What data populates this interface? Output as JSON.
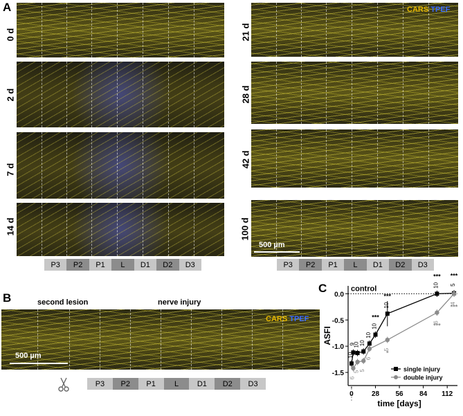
{
  "panel_a": {
    "letter": "A",
    "left_days": [
      "0 d",
      "2 d",
      "7 d",
      "14 d"
    ],
    "right_days": [
      "21 d",
      "28 d",
      "42 d",
      "100 d"
    ],
    "legend_cars": "CARS",
    "legend_tpef": "TPEF",
    "scale_label": "500 µm",
    "segments": [
      "P3",
      "P2",
      "P1",
      "L",
      "D1",
      "D2",
      "D3"
    ]
  },
  "panel_b": {
    "letter": "B",
    "second_lesion": "second lesion",
    "nerve_injury": "nerve injury",
    "legend_cars": "CARS",
    "legend_tpef": "TPEF",
    "scale_label": "500 µm",
    "segments": [
      "P3",
      "P2",
      "P1",
      "L",
      "D1",
      "D2",
      "D3"
    ],
    "scissors_icon": "scissors-icon"
  },
  "panel_c": {
    "letter": "C",
    "control_label": "control",
    "scissors_icon": "scissors-icon",
    "colors": {
      "single": "#000000",
      "double": "#8c8c8c"
    },
    "chart_data": {
      "type": "line",
      "xlabel": "time [days]",
      "ylabel": "ASFI",
      "xticks": [
        0,
        28,
        56,
        84,
        112
      ],
      "yticks": [
        0.0,
        -0.5,
        -1.0,
        -1.5
      ],
      "xlim": [
        -4,
        124
      ],
      "ylim": [
        -1.75,
        0.15
      ],
      "control_line": 0.0,
      "series": [
        {
          "name": "single injury",
          "marker": "square",
          "x": [
            0,
            2,
            7,
            14,
            21,
            28,
            42,
            100,
            120
          ],
          "y": [
            -1.33,
            -1.12,
            -1.13,
            -1.1,
            -0.95,
            -0.78,
            -0.38,
            0.0,
            0.01
          ],
          "n": [
            "10",
            "9",
            "10",
            "10",
            "10",
            "10",
            "10",
            "10",
            "5"
          ],
          "sig": [
            "",
            "",
            "",
            "",
            "",
            "***",
            "***",
            "***",
            "***"
          ]
        },
        {
          "name": "double injury",
          "marker": "circle",
          "x": [
            2,
            7,
            14,
            21,
            42,
            100,
            120
          ],
          "y": [
            -1.42,
            -1.3,
            -1.28,
            -1.05,
            -0.88,
            -0.36,
            0.0
          ],
          "n": [
            "6",
            "5",
            "5",
            "6",
            "5",
            "6",
            "4"
          ],
          "sig": [
            "",
            "",
            "",
            "",
            "*",
            "***",
            "***"
          ]
        }
      ]
    }
  }
}
